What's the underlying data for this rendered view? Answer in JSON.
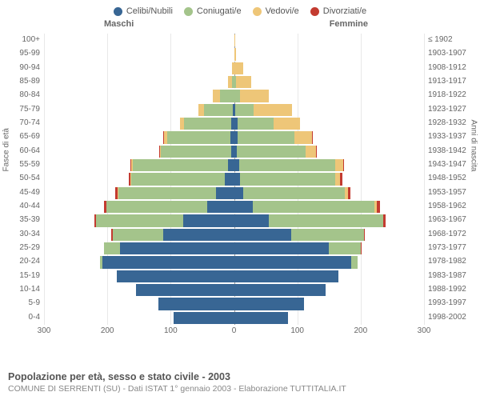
{
  "chart": {
    "type": "population-pyramid",
    "legend": [
      {
        "label": "Celibi/Nubili",
        "color": "#386694"
      },
      {
        "label": "Coniugati/e",
        "color": "#a4c48b"
      },
      {
        "label": "Vedovi/e",
        "color": "#eec678"
      },
      {
        "label": "Divorziati/e",
        "color": "#c33b30"
      }
    ],
    "gender_left": "Maschi",
    "gender_right": "Femmine",
    "y_title_left": "Fasce di età",
    "y_title_right": "Anni di nascita",
    "xmax": 300,
    "x_ticks": [
      300,
      200,
      100,
      0,
      100,
      200,
      300
    ],
    "background_color": "#ffffff",
    "grid_color": "#e8e8e8",
    "rows": [
      {
        "age": "100+",
        "birth": "≤ 1902",
        "m": [
          0,
          0,
          0,
          0
        ],
        "f": [
          0,
          0,
          1,
          0
        ]
      },
      {
        "age": "95-99",
        "birth": "1903-1907",
        "m": [
          0,
          0,
          0,
          0
        ],
        "f": [
          0,
          0,
          3,
          0
        ]
      },
      {
        "age": "90-94",
        "birth": "1908-1912",
        "m": [
          0,
          0,
          3,
          0
        ],
        "f": [
          0,
          1,
          14,
          0
        ]
      },
      {
        "age": "85-89",
        "birth": "1913-1917",
        "m": [
          0,
          3,
          7,
          0
        ],
        "f": [
          0,
          3,
          24,
          0
        ]
      },
      {
        "age": "80-84",
        "birth": "1918-1922",
        "m": [
          0,
          22,
          11,
          0
        ],
        "f": [
          0,
          10,
          45,
          0
        ]
      },
      {
        "age": "75-79",
        "birth": "1923-1927",
        "m": [
          2,
          46,
          8,
          0
        ],
        "f": [
          2,
          29,
          60,
          0
        ]
      },
      {
        "age": "70-74",
        "birth": "1928-1932",
        "m": [
          4,
          75,
          6,
          0
        ],
        "f": [
          6,
          56,
          42,
          0
        ]
      },
      {
        "age": "65-69",
        "birth": "1933-1937",
        "m": [
          6,
          100,
          5,
          1
        ],
        "f": [
          6,
          89,
          28,
          1
        ]
      },
      {
        "age": "60-64",
        "birth": "1938-1942",
        "m": [
          5,
          110,
          2,
          1
        ],
        "f": [
          5,
          108,
          17,
          1
        ]
      },
      {
        "age": "55-59",
        "birth": "1943-1947",
        "m": [
          10,
          150,
          2,
          2
        ],
        "f": [
          8,
          152,
          12,
          2
        ]
      },
      {
        "age": "50-54",
        "birth": "1948-1952",
        "m": [
          14,
          148,
          1,
          3
        ],
        "f": [
          10,
          150,
          8,
          3
        ]
      },
      {
        "age": "45-49",
        "birth": "1953-1957",
        "m": [
          28,
          155,
          1,
          4
        ],
        "f": [
          15,
          160,
          5,
          4
        ]
      },
      {
        "age": "40-44",
        "birth": "1958-1962",
        "m": [
          42,
          160,
          0,
          3
        ],
        "f": [
          30,
          192,
          3,
          6
        ]
      },
      {
        "age": "35-39",
        "birth": "1963-1967",
        "m": [
          80,
          138,
          0,
          3
        ],
        "f": [
          55,
          180,
          1,
          4
        ]
      },
      {
        "age": "30-34",
        "birth": "1968-1972",
        "m": [
          112,
          80,
          0,
          2
        ],
        "f": [
          90,
          115,
          0,
          2
        ]
      },
      {
        "age": "25-29",
        "birth": "1973-1977",
        "m": [
          180,
          25,
          0,
          0
        ],
        "f": [
          150,
          50,
          0,
          1
        ]
      },
      {
        "age": "20-24",
        "birth": "1978-1982",
        "m": [
          208,
          3,
          0,
          0
        ],
        "f": [
          185,
          10,
          0,
          0
        ]
      },
      {
        "age": "15-19",
        "birth": "1983-1987",
        "m": [
          185,
          0,
          0,
          0
        ],
        "f": [
          165,
          0,
          0,
          0
        ]
      },
      {
        "age": "10-14",
        "birth": "1988-1992",
        "m": [
          155,
          0,
          0,
          0
        ],
        "f": [
          145,
          0,
          0,
          0
        ]
      },
      {
        "age": "5-9",
        "birth": "1993-1997",
        "m": [
          120,
          0,
          0,
          0
        ],
        "f": [
          110,
          0,
          0,
          0
        ]
      },
      {
        "age": "0-4",
        "birth": "1998-2002",
        "m": [
          95,
          0,
          0,
          0
        ],
        "f": [
          85,
          0,
          0,
          0
        ]
      }
    ],
    "title": "Popolazione per età, sesso e stato civile - 2003",
    "subtitle": "COMUNE DI SERRENTI (SU) - Dati ISTAT 1° gennaio 2003 - Elaborazione TUTTITALIA.IT"
  }
}
